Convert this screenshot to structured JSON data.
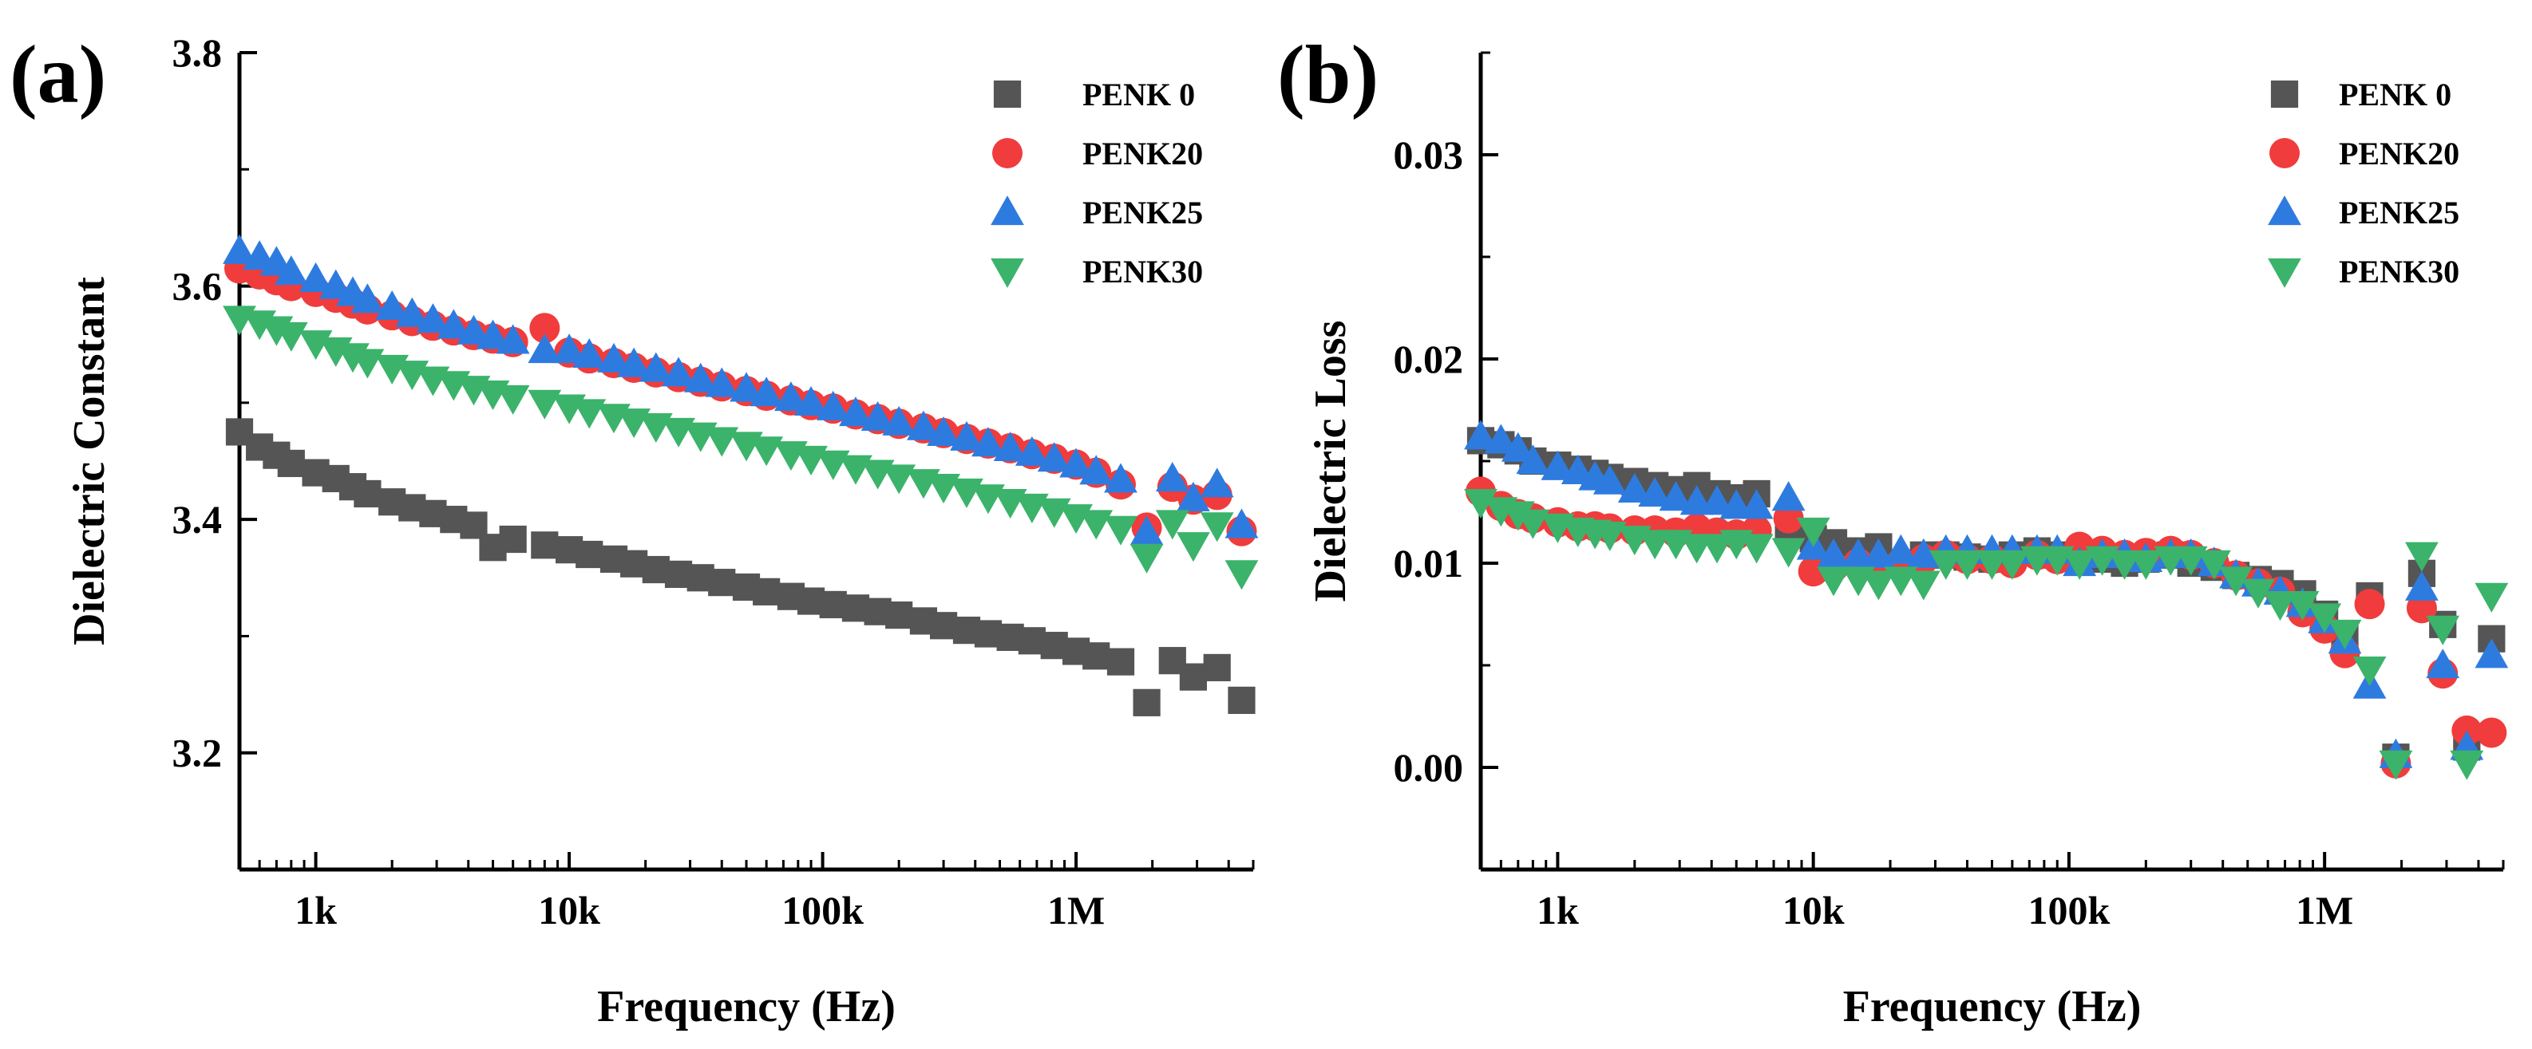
{
  "chart_data": [
    {
      "type": "scatter",
      "panel_label": "(a)",
      "title": "",
      "xlabel": "Frequency (Hz)",
      "ylabel": "Dielectric Constant",
      "xscale": "log",
      "xlim": [
        500,
        5000000
      ],
      "ylim": [
        3.1,
        3.8
      ],
      "x_ticks": [
        {
          "value": 1000,
          "label": "1k"
        },
        {
          "value": 10000,
          "label": "10k"
        },
        {
          "value": 100000,
          "label": "100k"
        },
        {
          "value": 1000000,
          "label": "1M"
        }
      ],
      "y_ticks": [
        {
          "value": 3.2,
          "label": "3.2"
        },
        {
          "value": 3.4,
          "label": "3.4"
        },
        {
          "value": 3.6,
          "label": "3.6"
        },
        {
          "value": 3.8,
          "label": "3.8"
        }
      ],
      "grid": false,
      "legend_position": "top-right",
      "series": [
        {
          "name": "PENK 0",
          "marker": "square",
          "color": "#555555",
          "x": [
            500,
            600,
            700,
            800,
            1000,
            1200,
            1400,
            1600,
            2000,
            2400,
            2900,
            3500,
            4200,
            5000,
            6000,
            8000,
            10000,
            12000,
            15000,
            18000,
            22000,
            27000,
            33000,
            40000,
            50000,
            60000,
            75000,
            90000,
            110000,
            135000,
            165000,
            200000,
            250000,
            300000,
            370000,
            450000,
            550000,
            670000,
            820000,
            1000000,
            1200000,
            1500000,
            1900000,
            2400000,
            2900000,
            3600000,
            4500000
          ],
          "values": [
            3.475,
            3.462,
            3.455,
            3.448,
            3.44,
            3.435,
            3.428,
            3.422,
            3.415,
            3.41,
            3.405,
            3.4,
            3.395,
            3.376,
            3.383,
            3.378,
            3.374,
            3.37,
            3.366,
            3.362,
            3.357,
            3.353,
            3.35,
            3.346,
            3.342,
            3.338,
            3.334,
            3.33,
            3.327,
            3.324,
            3.321,
            3.318,
            3.313,
            3.309,
            3.305,
            3.302,
            3.299,
            3.296,
            3.292,
            3.287,
            3.283,
            3.278,
            3.243,
            3.279,
            3.265,
            3.273,
            3.245
          ]
        },
        {
          "name": "PENK20",
          "marker": "circle",
          "color": "#f03c3c",
          "x": [
            500,
            600,
            700,
            800,
            1000,
            1200,
            1400,
            1600,
            2000,
            2400,
            2900,
            3500,
            4200,
            5000,
            6000,
            8000,
            10000,
            12000,
            15000,
            18000,
            22000,
            27000,
            33000,
            40000,
            50000,
            60000,
            75000,
            90000,
            110000,
            135000,
            165000,
            200000,
            250000,
            300000,
            370000,
            450000,
            550000,
            670000,
            820000,
            1000000,
            1200000,
            1500000,
            1900000,
            2400000,
            2900000,
            3600000,
            4500000
          ],
          "values": [
            3.615,
            3.61,
            3.605,
            3.6,
            3.595,
            3.59,
            3.585,
            3.58,
            3.575,
            3.57,
            3.566,
            3.562,
            3.558,
            3.555,
            3.552,
            3.564,
            3.543,
            3.538,
            3.534,
            3.53,
            3.526,
            3.522,
            3.518,
            3.514,
            3.51,
            3.506,
            3.502,
            3.498,
            3.495,
            3.49,
            3.486,
            3.482,
            3.478,
            3.474,
            3.469,
            3.465,
            3.461,
            3.456,
            3.452,
            3.447,
            3.44,
            3.43,
            3.393,
            3.428,
            3.417,
            3.421,
            3.39
          ]
        },
        {
          "name": "PENK25",
          "marker": "triangle-up",
          "color": "#2e7be0",
          "x": [
            500,
            600,
            700,
            800,
            1000,
            1200,
            1400,
            1600,
            2000,
            2400,
            2900,
            3500,
            4200,
            5000,
            6000,
            8000,
            10000,
            12000,
            15000,
            18000,
            22000,
            27000,
            33000,
            40000,
            50000,
            60000,
            75000,
            90000,
            110000,
            135000,
            165000,
            200000,
            250000,
            300000,
            370000,
            450000,
            550000,
            670000,
            820000,
            1000000,
            1200000,
            1500000,
            1900000,
            2400000,
            2900000,
            3600000,
            4500000
          ],
          "values": [
            3.63,
            3.625,
            3.62,
            3.612,
            3.606,
            3.6,
            3.594,
            3.588,
            3.582,
            3.576,
            3.571,
            3.566,
            3.561,
            3.557,
            3.553,
            3.545,
            3.545,
            3.541,
            3.537,
            3.533,
            3.529,
            3.525,
            3.52,
            3.516,
            3.512,
            3.508,
            3.504,
            3.5,
            3.496,
            3.491,
            3.487,
            3.483,
            3.479,
            3.474,
            3.47,
            3.465,
            3.461,
            3.457,
            3.452,
            3.447,
            3.441,
            3.434,
            3.389,
            3.435,
            3.418,
            3.43,
            3.395
          ]
        },
        {
          "name": "PENK30",
          "marker": "triangle-down",
          "color": "#3bb36b",
          "x": [
            500,
            600,
            700,
            800,
            1000,
            1200,
            1400,
            1600,
            2000,
            2400,
            2900,
            3500,
            4200,
            5000,
            6000,
            8000,
            10000,
            12000,
            15000,
            18000,
            22000,
            27000,
            33000,
            40000,
            50000,
            60000,
            75000,
            90000,
            110000,
            135000,
            165000,
            200000,
            250000,
            300000,
            370000,
            450000,
            550000,
            670000,
            820000,
            1000000,
            1200000,
            1500000,
            1900000,
            2400000,
            2900000,
            3600000,
            4500000
          ],
          "values": [
            3.572,
            3.568,
            3.563,
            3.558,
            3.551,
            3.545,
            3.54,
            3.535,
            3.53,
            3.525,
            3.52,
            3.516,
            3.512,
            3.508,
            3.504,
            3.5,
            3.496,
            3.492,
            3.488,
            3.484,
            3.48,
            3.476,
            3.472,
            3.468,
            3.464,
            3.46,
            3.456,
            3.452,
            3.448,
            3.444,
            3.44,
            3.436,
            3.432,
            3.428,
            3.424,
            3.419,
            3.415,
            3.411,
            3.407,
            3.402,
            3.397,
            3.392,
            3.368,
            3.397,
            3.378,
            3.395,
            3.354
          ]
        }
      ]
    },
    {
      "type": "scatter",
      "panel_label": "(b)",
      "title": "",
      "xlabel": "Frequency (Hz)",
      "ylabel": "Dielectric Loss",
      "xscale": "log",
      "xlim": [
        500,
        5000000
      ],
      "ylim": [
        -0.005,
        0.035
      ],
      "x_ticks": [
        {
          "value": 1000,
          "label": "1k"
        },
        {
          "value": 10000,
          "label": "10k"
        },
        {
          "value": 100000,
          "label": "100k"
        },
        {
          "value": 1000000,
          "label": "1M"
        }
      ],
      "y_ticks": [
        {
          "value": 0.0,
          "label": "0.00"
        },
        {
          "value": 0.01,
          "label": "0.01"
        },
        {
          "value": 0.02,
          "label": "0.02"
        },
        {
          "value": 0.03,
          "label": "0.03"
        }
      ],
      "grid": false,
      "legend_position": "top-right",
      "series": [
        {
          "name": "PENK 0",
          "marker": "square",
          "color": "#555555",
          "x": [
            500,
            600,
            700,
            800,
            1000,
            1200,
            1400,
            1600,
            2000,
            2400,
            2900,
            3500,
            4200,
            5000,
            6000,
            8000,
            10000,
            12000,
            15000,
            18000,
            22000,
            27000,
            33000,
            40000,
            50000,
            60000,
            75000,
            90000,
            110000,
            135000,
            165000,
            200000,
            250000,
            300000,
            370000,
            450000,
            550000,
            670000,
            820000,
            1000000,
            1200000,
            1500000,
            1900000,
            2400000,
            2900000,
            3600000,
            4500000
          ],
          "values": [
            0.016,
            0.0158,
            0.0155,
            0.015,
            0.0148,
            0.0146,
            0.0144,
            0.0142,
            0.014,
            0.0138,
            0.0136,
            0.0138,
            0.0134,
            0.0132,
            0.0134,
            0.0116,
            0.0112,
            0.011,
            0.0106,
            0.0108,
            0.01,
            0.0104,
            0.0104,
            0.0103,
            0.0102,
            0.0104,
            0.0106,
            0.0104,
            0.0102,
            0.0102,
            0.01,
            0.0102,
            0.0104,
            0.01,
            0.0098,
            0.0094,
            0.0092,
            0.009,
            0.0085,
            0.0075,
            0.0065,
            0.0084,
            0.0005,
            0.0095,
            0.007,
            0.001,
            0.0063
          ]
        },
        {
          "name": "PENK20",
          "marker": "circle",
          "color": "#f03c3c",
          "x": [
            500,
            600,
            700,
            800,
            1000,
            1200,
            1400,
            1600,
            2000,
            2400,
            2900,
            3500,
            4200,
            5000,
            6000,
            8000,
            10000,
            12000,
            15000,
            18000,
            22000,
            27000,
            33000,
            40000,
            50000,
            60000,
            75000,
            90000,
            110000,
            135000,
            165000,
            200000,
            250000,
            300000,
            370000,
            450000,
            550000,
            670000,
            820000,
            1000000,
            1200000,
            1500000,
            1900000,
            2400000,
            2900000,
            3600000,
            4500000
          ],
          "values": [
            0.0135,
            0.0128,
            0.0124,
            0.0122,
            0.012,
            0.0118,
            0.0118,
            0.0117,
            0.0116,
            0.0116,
            0.0115,
            0.0117,
            0.0115,
            0.0114,
            0.0116,
            0.0122,
            0.0096,
            0.0098,
            0.01,
            0.0097,
            0.01,
            0.0102,
            0.0104,
            0.0102,
            0.0102,
            0.01,
            0.0104,
            0.0102,
            0.0108,
            0.0106,
            0.0104,
            0.0105,
            0.0106,
            0.0104,
            0.01,
            0.0094,
            0.009,
            0.0086,
            0.0076,
            0.0068,
            0.0056,
            0.008,
            0.0002,
            0.0078,
            0.0046,
            0.0018,
            0.0017
          ]
        },
        {
          "name": "PENK25",
          "marker": "triangle-up",
          "color": "#2e7be0",
          "x": [
            500,
            600,
            700,
            800,
            1000,
            1200,
            1400,
            1600,
            2000,
            2400,
            2900,
            3500,
            4200,
            5000,
            6000,
            8000,
            10000,
            12000,
            15000,
            18000,
            22000,
            27000,
            33000,
            40000,
            50000,
            60000,
            75000,
            90000,
            110000,
            135000,
            165000,
            200000,
            250000,
            300000,
            370000,
            450000,
            550000,
            670000,
            820000,
            1000000,
            1200000,
            1500000,
            1900000,
            2400000,
            2900000,
            3600000,
            4500000
          ],
          "values": [
            0.0162,
            0.016,
            0.0156,
            0.015,
            0.0147,
            0.0145,
            0.0142,
            0.014,
            0.0136,
            0.0134,
            0.0132,
            0.013,
            0.013,
            0.0128,
            0.0128,
            0.0132,
            0.0108,
            0.0104,
            0.0104,
            0.0104,
            0.0106,
            0.0104,
            0.0106,
            0.0106,
            0.0106,
            0.0106,
            0.0106,
            0.0106,
            0.01,
            0.0104,
            0.0104,
            0.0102,
            0.0104,
            0.0104,
            0.01,
            0.0094,
            0.009,
            0.0086,
            0.008,
            0.0072,
            0.0062,
            0.004,
            0.0006,
            0.0088,
            0.005,
            0.001,
            0.0055
          ]
        },
        {
          "name": "PENK30",
          "marker": "triangle-down",
          "color": "#3bb36b",
          "x": [
            500,
            600,
            700,
            800,
            1000,
            1200,
            1400,
            1600,
            2000,
            2400,
            2900,
            3500,
            4200,
            5000,
            6000,
            8000,
            10000,
            12000,
            15000,
            18000,
            22000,
            27000,
            33000,
            40000,
            50000,
            60000,
            75000,
            90000,
            110000,
            135000,
            165000,
            200000,
            250000,
            300000,
            370000,
            450000,
            550000,
            670000,
            820000,
            1000000,
            1200000,
            1500000,
            1900000,
            2400000,
            2900000,
            3600000,
            4500000
          ],
          "values": [
            0.013,
            0.0126,
            0.0124,
            0.012,
            0.0118,
            0.0116,
            0.0115,
            0.0114,
            0.0112,
            0.011,
            0.011,
            0.0108,
            0.0108,
            0.011,
            0.0108,
            0.0106,
            0.0116,
            0.0092,
            0.0092,
            0.009,
            0.0092,
            0.009,
            0.01,
            0.01,
            0.01,
            0.01,
            0.0102,
            0.0102,
            0.01,
            0.0102,
            0.01,
            0.01,
            0.0102,
            0.0102,
            0.01,
            0.0092,
            0.0086,
            0.008,
            0.008,
            0.0074,
            0.0066,
            0.0048,
            0.0002,
            0.0104,
            0.0068,
            0.0002,
            0.0084
          ]
        }
      ]
    }
  ]
}
